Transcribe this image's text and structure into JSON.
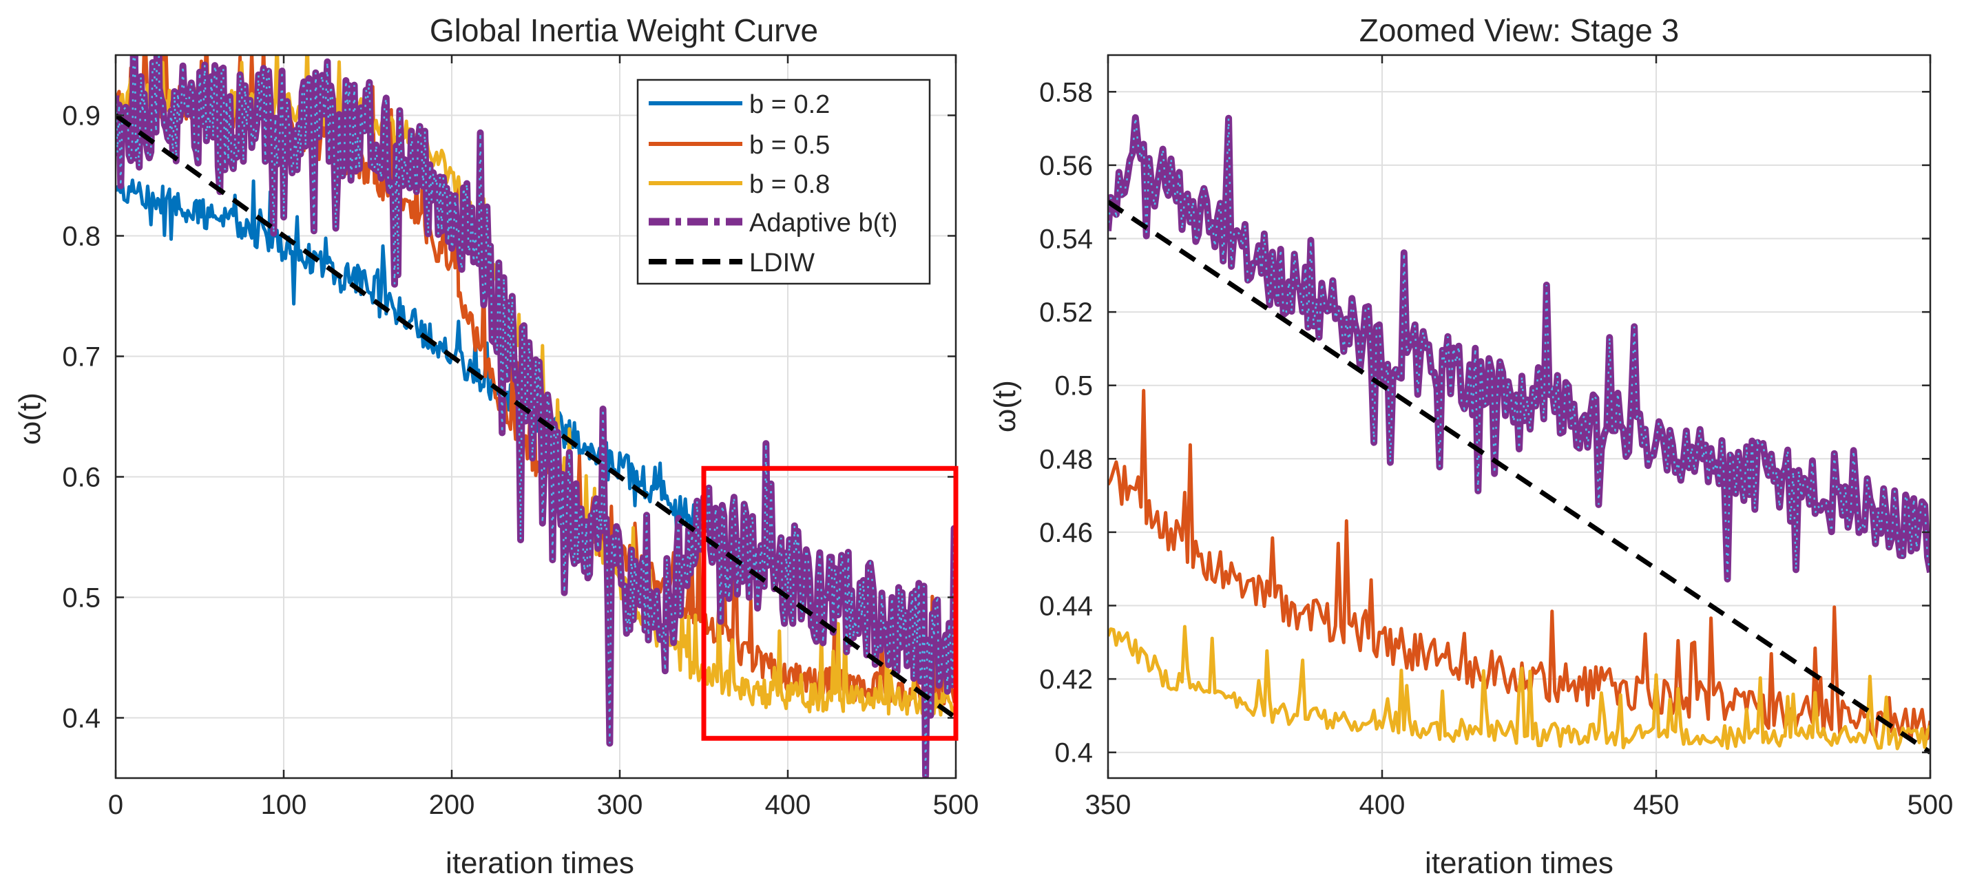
{
  "colors": {
    "b02": "#0072BD",
    "b05": "#D95319",
    "b08": "#EDB120",
    "adaptive": "#7E2F8E",
    "adaptive_dots": "#4DBEEE",
    "ldiw": "#000000",
    "zoom_box": "#FF0000"
  },
  "chart_data": [
    {
      "type": "line",
      "title": "Global Inertia Weight Curve",
      "xlabel": "iteration times",
      "ylabel": "ω(t)",
      "xlim": [
        0,
        500
      ],
      "ylim": [
        0.35,
        0.95
      ],
      "xticks": [
        0,
        100,
        200,
        300,
        400,
        500
      ],
      "yticks": [
        0.4,
        0.5,
        0.6,
        0.7,
        0.8,
        0.9
      ],
      "xtick_labels": [
        "0",
        "100",
        "200",
        "300",
        "400",
        "500"
      ],
      "ytick_labels": [
        "0.4",
        "0.5",
        "0.6",
        "0.7",
        "0.8",
        "0.9"
      ],
      "grid": true,
      "legend_position": "top-right",
      "legend": [
        "b = 0.2",
        "b = 0.5",
        "b = 0.8",
        "Adaptive b(t)",
        "LDIW"
      ],
      "zoom_box": {
        "x": [
          350,
          500
        ],
        "y": [
          0.383,
          0.607
        ]
      },
      "series": [
        {
          "name": "b = 0.2",
          "key": "b02",
          "style": "solid",
          "visible_x": [
            0,
            350
          ],
          "x": [
            0,
            25,
            50,
            75,
            100,
            125,
            150,
            175,
            200,
            225,
            250,
            275,
            300,
            325,
            350
          ],
          "y": [
            0.84,
            0.83,
            0.82,
            0.81,
            0.79,
            0.775,
            0.76,
            0.73,
            0.7,
            0.675,
            0.65,
            0.63,
            0.61,
            0.585,
            0.56
          ],
          "noise": 0.018,
          "seed": 11
        },
        {
          "name": "b = 0.5",
          "key": "b05",
          "style": "solid",
          "visible_x": [
            0,
            500
          ],
          "x": [
            0,
            50,
            100,
            125,
            150,
            175,
            200,
            210,
            225,
            250,
            275,
            300,
            325,
            350,
            375,
            400,
            450,
            500
          ],
          "y": [
            0.9,
            0.895,
            0.88,
            0.86,
            0.84,
            0.81,
            0.76,
            0.72,
            0.66,
            0.6,
            0.55,
            0.52,
            0.5,
            0.47,
            0.44,
            0.42,
            0.41,
            0.405
          ],
          "noise": 0.04,
          "seed": 23
        },
        {
          "name": "b = 0.8",
          "key": "b08",
          "style": "solid",
          "visible_x": [
            0,
            500
          ],
          "x": [
            0,
            50,
            100,
            150,
            175,
            200,
            225,
            250,
            275,
            300,
            325,
            350,
            375,
            400,
            450,
            500
          ],
          "y": [
            0.9,
            0.9,
            0.895,
            0.885,
            0.87,
            0.84,
            0.76,
            0.66,
            0.56,
            0.5,
            0.45,
            0.425,
            0.41,
            0.405,
            0.402,
            0.4
          ],
          "noise": 0.035,
          "seed": 37
        },
        {
          "name": "Adaptive b(t)",
          "key": "adaptive",
          "style": "dashdot",
          "visible_x": [
            0,
            500
          ],
          "x": [
            0,
            50,
            100,
            150,
            175,
            200,
            225,
            250,
            275,
            300,
            325,
            350,
            375,
            400,
            425,
            450,
            475,
            500
          ],
          "y": [
            0.9,
            0.9,
            0.895,
            0.885,
            0.865,
            0.83,
            0.75,
            0.66,
            0.56,
            0.52,
            0.48,
            0.555,
            0.535,
            0.52,
            0.5,
            0.49,
            0.47,
            0.46
          ],
          "noise": 0.045,
          "seed": 53
        },
        {
          "name": "LDIW",
          "key": "ldiw",
          "style": "dashed",
          "visible_x": [
            0,
            500
          ],
          "x": [
            0,
            500
          ],
          "y": [
            0.9,
            0.4
          ],
          "noise": 0,
          "seed": 1
        }
      ]
    },
    {
      "type": "line",
      "title": "Zoomed View: Stage 3",
      "xlabel": "iteration times",
      "ylabel": "ω(t)",
      "xlim": [
        350,
        500
      ],
      "ylim": [
        0.393,
        0.59
      ],
      "xticks": [
        350,
        400,
        450,
        500
      ],
      "yticks": [
        0.4,
        0.42,
        0.44,
        0.46,
        0.48,
        0.5,
        0.52,
        0.54,
        0.56,
        0.58
      ],
      "xtick_labels": [
        "350",
        "400",
        "450",
        "500"
      ],
      "ytick_labels": [
        "0.4",
        "0.42",
        "0.44",
        "0.46",
        "0.48",
        "0.5",
        "0.52",
        "0.54",
        "0.56",
        "0.58"
      ],
      "grid": true,
      "series": [
        {
          "name": "b = 0.5",
          "key": "b05",
          "style": "solid",
          "visible_x": [
            350,
            500
          ],
          "x": [
            350,
            355,
            360,
            370,
            380,
            390,
            400,
            410,
            425,
            440,
            460,
            480,
            500
          ],
          "y": [
            0.47,
            0.465,
            0.455,
            0.445,
            0.435,
            0.43,
            0.425,
            0.42,
            0.415,
            0.412,
            0.408,
            0.405,
            0.403
          ],
          "noise": 0.016,
          "seed": 71
        },
        {
          "name": "b = 0.8",
          "key": "b08",
          "style": "solid",
          "visible_x": [
            350,
            500
          ],
          "x": [
            350,
            355,
            360,
            370,
            380,
            390,
            400,
            410,
            425,
            450,
            475,
            500
          ],
          "y": [
            0.43,
            0.425,
            0.418,
            0.412,
            0.408,
            0.406,
            0.405,
            0.403,
            0.402,
            0.401,
            0.401,
            0.401
          ],
          "noise": 0.009,
          "seed": 83
        },
        {
          "name": "Adaptive b(t)",
          "key": "adaptive",
          "style": "dashdot",
          "visible_x": [
            350,
            500
          ],
          "x": [
            350,
            355,
            360,
            370,
            380,
            390,
            400,
            410,
            420,
            430,
            440,
            450,
            460,
            470,
            480,
            490,
            500
          ],
          "y": [
            0.55,
            0.565,
            0.555,
            0.545,
            0.53,
            0.52,
            0.51,
            0.505,
            0.5,
            0.495,
            0.49,
            0.485,
            0.48,
            0.475,
            0.47,
            0.465,
            0.458
          ],
          "noise": 0.014,
          "seed": 97
        },
        {
          "name": "LDIW",
          "key": "ldiw",
          "style": "dashed",
          "visible_x": [
            350,
            500
          ],
          "x": [
            350,
            500
          ],
          "y": [
            0.55,
            0.4
          ],
          "noise": 0,
          "seed": 1
        }
      ]
    }
  ]
}
